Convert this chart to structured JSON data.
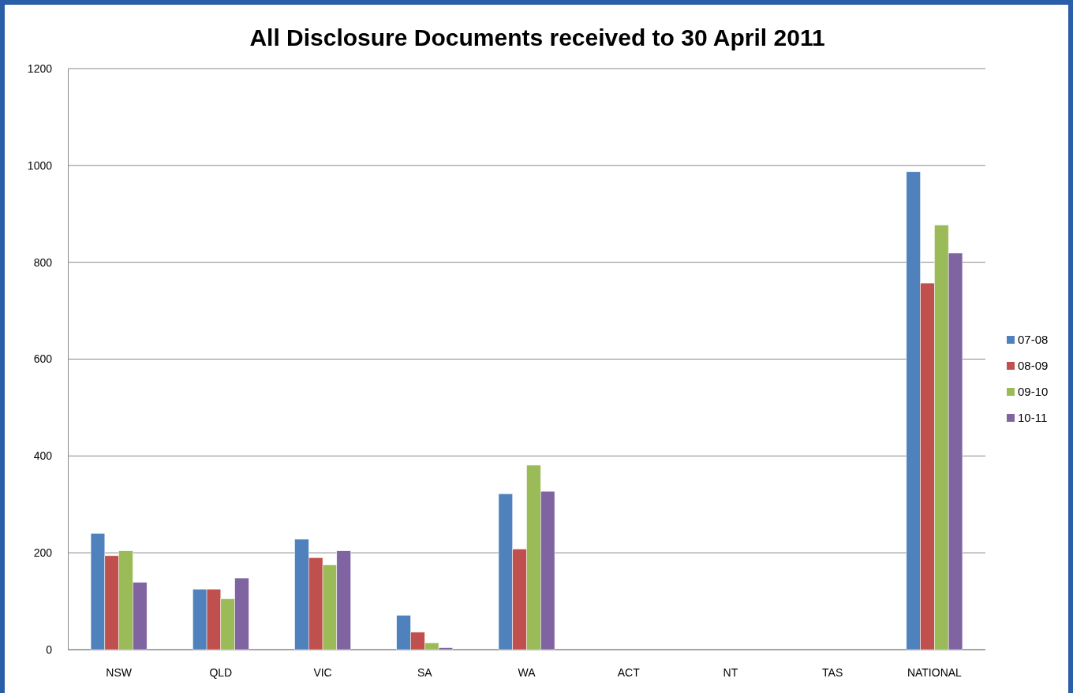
{
  "chart_data": {
    "type": "bar",
    "title": "All Disclosure Documents received to 30 April 2011",
    "categories": [
      "NSW",
      "QLD",
      "VIC",
      "SA",
      "WA",
      "ACT",
      "NT",
      "TAS",
      "NATIONAL"
    ],
    "series": [
      {
        "name": "07-08",
        "color": "#4f81bd",
        "values": [
          240,
          125,
          228,
          71,
          322,
          null,
          null,
          null,
          987
        ]
      },
      {
        "name": "08-09",
        "color": "#c0504d",
        "values": [
          194,
          125,
          190,
          36,
          208,
          null,
          null,
          null,
          757
        ]
      },
      {
        "name": "09-10",
        "color": "#9bbb59",
        "values": [
          204,
          105,
          175,
          14,
          381,
          null,
          null,
          null,
          877
        ]
      },
      {
        "name": "10-11",
        "color": "#8064a2",
        "values": [
          139,
          148,
          204,
          4,
          327,
          null,
          null,
          null,
          819
        ]
      }
    ],
    "ylim": [
      0,
      1200
    ],
    "yticks": [
      0,
      200,
      400,
      600,
      800,
      1000,
      1200
    ],
    "grid": "y",
    "legend": "right"
  }
}
